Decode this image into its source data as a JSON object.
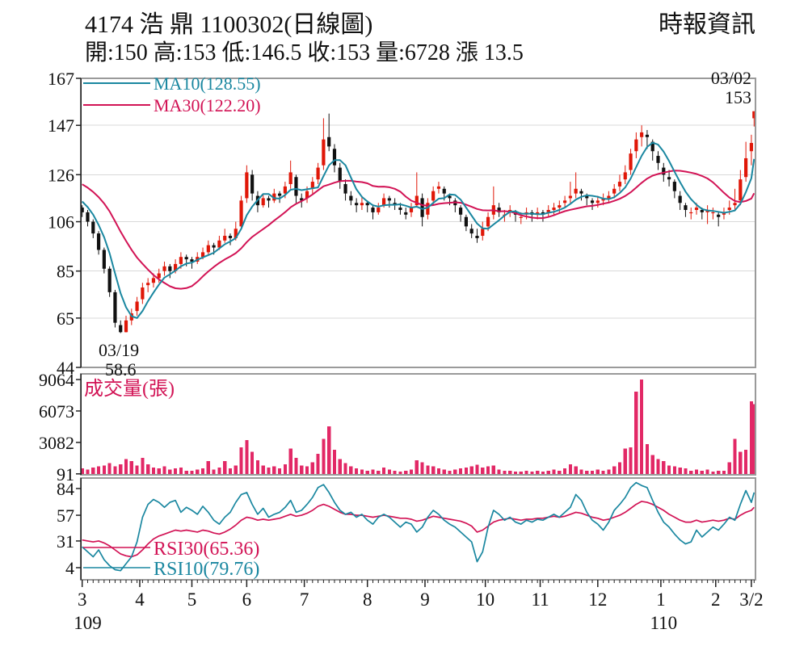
{
  "header": {
    "title": "4174  浩  鼎 1100302(日線圖)",
    "info": "開:150 高:153 低:146.5 收:153 量:6728 漲 13.5",
    "source": "時報資訊",
    "open": 150,
    "high": 153,
    "low": 146.5,
    "close": 153,
    "volume": 6728,
    "change": 13.5
  },
  "colors": {
    "up": "#e01708",
    "down": "#111111",
    "ma10": "#1a87a0",
    "ma30": "#d21355",
    "volume_bar": "#e22866",
    "rsi10": "#1a87a0",
    "rsi30": "#d21355",
    "grid": "#d9d9d9",
    "frame": "#9a9a9a",
    "axis": "#222222"
  },
  "chart_data": {
    "type": "candlestick",
    "main": {
      "legend": {
        "ma10_label": "MA10(128.55)",
        "ma30_label": "MA30(122.20)"
      },
      "yticks": [
        167,
        147,
        126,
        106,
        85,
        65,
        44
      ],
      "annotations": {
        "high_date": "03/02",
        "high_value": "153",
        "low_date": "03/19",
        "low_value": "58.6"
      },
      "sample_days": 2,
      "total_days": 246,
      "ma_prehistory": [
        128,
        128,
        127,
        127,
        126,
        126,
        125,
        124,
        123,
        122,
        118,
        117,
        116,
        112
      ],
      "candles_ohlcv": [
        [
          112,
          113,
          108,
          110,
          600
        ],
        [
          110,
          111,
          104,
          106,
          500
        ],
        [
          106,
          107,
          99,
          101,
          700
        ],
        [
          101,
          102,
          92,
          94,
          800
        ],
        [
          94,
          95,
          84,
          86,
          900
        ],
        [
          86,
          87,
          74,
          76,
          1100
        ],
        [
          76,
          77,
          61,
          63,
          800
        ],
        [
          62,
          64,
          58.6,
          59,
          1000
        ],
        [
          59,
          66,
          58.9,
          64,
          1500
        ],
        [
          64,
          69,
          62,
          67,
          1300
        ],
        [
          68,
          74,
          66,
          72,
          900
        ],
        [
          73,
          80,
          71,
          78,
          1600
        ],
        [
          79,
          82,
          76,
          80,
          1000
        ],
        [
          80,
          84,
          78,
          82,
          700
        ],
        [
          82,
          86,
          80,
          84,
          600
        ],
        [
          85,
          89,
          83,
          87,
          800
        ],
        [
          87,
          88,
          82,
          85,
          500
        ],
        [
          85,
          90,
          84,
          88,
          600
        ],
        [
          88,
          93,
          86,
          91,
          700
        ],
        [
          91,
          92,
          87,
          90,
          400
        ],
        [
          90,
          91,
          86,
          89,
          400
        ],
        [
          89,
          93,
          88,
          91,
          500
        ],
        [
          91,
          95,
          90,
          93,
          600
        ],
        [
          93,
          98,
          92,
          96,
          1300
        ],
        [
          96,
          97,
          92,
          95,
          500
        ],
        [
          95,
          100,
          94,
          98,
          700
        ],
        [
          98,
          103,
          97,
          100,
          1300
        ],
        [
          100,
          101,
          96,
          99,
          600
        ],
        [
          99,
          106,
          98,
          103,
          900
        ],
        [
          104,
          117,
          103,
          115,
          2600
        ],
        [
          116,
          130,
          114,
          127,
          3300
        ],
        [
          126,
          128,
          115,
          118,
          2200
        ],
        [
          117,
          119,
          110,
          113,
          1400
        ],
        [
          113,
          118,
          112,
          116,
          900
        ],
        [
          116,
          117,
          112,
          115,
          700
        ],
        [
          115,
          120,
          114,
          118,
          800
        ],
        [
          118,
          119,
          114,
          117,
          600
        ],
        [
          118,
          123,
          116,
          121,
          1000
        ],
        [
          122,
          132,
          120,
          127,
          2500
        ],
        [
          125,
          126,
          114,
          117,
          1600
        ],
        [
          116,
          118,
          112,
          115,
          900
        ],
        [
          116,
          121,
          114,
          119,
          800
        ],
        [
          120,
          125,
          118,
          123,
          1200
        ],
        [
          124,
          131,
          122,
          129,
          2000
        ],
        [
          130,
          150,
          128,
          141,
          3400
        ],
        [
          142,
          152,
          136,
          138,
          4600
        ],
        [
          137,
          139,
          127,
          130,
          2400
        ],
        [
          129,
          131,
          120,
          123,
          1500
        ],
        [
          122,
          124,
          115,
          118,
          1100
        ],
        [
          117,
          119,
          113,
          115,
          800
        ],
        [
          114,
          116,
          110,
          113,
          600
        ],
        [
          113,
          117,
          111,
          114,
          500
        ],
        [
          114,
          115,
          110,
          113,
          400
        ],
        [
          112,
          113,
          107,
          110,
          500
        ],
        [
          110,
          114,
          109,
          112,
          400
        ],
        [
          113,
          118,
          112,
          116,
          700
        ],
        [
          116,
          117,
          112,
          115,
          500
        ],
        [
          114,
          116,
          111,
          113,
          400
        ],
        [
          112,
          114,
          109,
          111,
          300
        ],
        [
          110,
          112,
          107,
          109,
          400
        ],
        [
          110,
          114,
          108,
          112,
          500
        ],
        [
          113,
          127,
          112,
          117,
          1400
        ],
        [
          116,
          118,
          104,
          108,
          1200
        ],
        [
          109,
          116,
          107,
          114,
          900
        ],
        [
          115,
          121,
          113,
          119,
          800
        ],
        [
          120,
          123,
          118,
          121,
          600
        ],
        [
          120,
          121,
          115,
          118,
          500
        ],
        [
          117,
          118,
          113,
          116,
          400
        ],
        [
          115,
          116,
          110,
          113,
          500
        ],
        [
          112,
          113,
          106,
          109,
          600
        ],
        [
          108,
          109,
          102,
          104,
          700
        ],
        [
          103,
          105,
          99,
          101,
          800
        ],
        [
          100,
          103,
          97,
          99,
          950
        ],
        [
          100,
          106,
          98,
          103,
          700
        ],
        [
          104,
          110,
          102,
          108,
          800
        ],
        [
          109,
          121,
          107,
          113,
          900
        ],
        [
          112,
          114,
          108,
          110,
          500
        ],
        [
          109,
          111,
          106,
          109,
          400
        ],
        [
          110,
          113,
          108,
          111,
          400
        ],
        [
          110,
          111,
          106,
          109,
          300
        ],
        [
          108,
          110,
          105,
          108,
          300
        ],
        [
          109,
          112,
          107,
          110,
          400
        ],
        [
          110,
          111,
          106,
          109,
          300
        ],
        [
          109,
          112,
          107,
          110,
          400
        ],
        [
          110,
          111,
          106,
          109,
          300
        ],
        [
          110,
          113,
          108,
          111,
          400
        ],
        [
          111,
          114,
          109,
          112,
          500
        ],
        [
          112,
          115,
          110,
          113,
          400
        ],
        [
          114,
          117,
          112,
          115,
          600
        ],
        [
          116,
          123,
          114,
          117,
          1000
        ],
        [
          118,
          127,
          116,
          120,
          800
        ],
        [
          119,
          120,
          115,
          118,
          500
        ],
        [
          117,
          118,
          113,
          116,
          400
        ],
        [
          115,
          116,
          111,
          114,
          400
        ],
        [
          114,
          117,
          112,
          115,
          500
        ],
        [
          115,
          118,
          113,
          116,
          400
        ],
        [
          116,
          119,
          114,
          117,
          500
        ],
        [
          118,
          122,
          116,
          120,
          800
        ],
        [
          121,
          126,
          119,
          123,
          1200
        ],
        [
          124,
          130,
          122,
          127,
          2500
        ],
        [
          128,
          137,
          126,
          135,
          2600
        ],
        [
          136,
          144,
          133,
          141,
          7900
        ],
        [
          142,
          147,
          138,
          144,
          9064
        ],
        [
          143,
          145,
          137,
          142,
          2900
        ],
        [
          140,
          141,
          132,
          136,
          1900
        ],
        [
          134,
          136,
          128,
          131,
          1500
        ],
        [
          129,
          131,
          123,
          126,
          1300
        ],
        [
          125,
          128,
          121,
          124,
          900
        ],
        [
          123,
          124,
          116,
          119,
          800
        ],
        [
          117,
          119,
          111,
          114,
          700
        ],
        [
          113,
          114,
          108,
          111,
          600
        ],
        [
          110,
          112,
          107,
          110,
          400
        ],
        [
          111,
          114,
          109,
          112,
          500
        ],
        [
          111,
          112,
          107,
          110,
          400
        ],
        [
          110,
          113,
          105,
          111,
          500
        ],
        [
          110,
          112,
          107,
          110,
          300
        ],
        [
          109,
          110,
          104,
          108,
          400
        ],
        [
          109,
          112,
          107,
          110,
          400
        ],
        [
          111,
          115,
          109,
          112,
          1200
        ],
        [
          113,
          120,
          111,
          114,
          3400
        ],
        [
          115,
          128,
          113,
          124,
          2200
        ],
        [
          125,
          140,
          123,
          133,
          2400
        ],
        [
          136,
          143,
          130,
          139.5,
          7000
        ],
        [
          150,
          153,
          146.5,
          153,
          6728
        ]
      ]
    },
    "volume_panel": {
      "label": "成交量(張)",
      "yticks": [
        9064,
        6073,
        3082,
        91
      ],
      "ymax": 9064
    },
    "rsi_panel": {
      "legend": {
        "rsi30_label": "RSI30(65.36)",
        "rsi10_label": "RSI10(79.76)"
      },
      "yticks": [
        84,
        57,
        31,
        4
      ],
      "rsi10": [
        25,
        20,
        15,
        22,
        12,
        6,
        2,
        1,
        8,
        15,
        30,
        55,
        68,
        73,
        70,
        65,
        70,
        72,
        60,
        65,
        62,
        58,
        66,
        60,
        52,
        48,
        55,
        60,
        70,
        78,
        80,
        68,
        58,
        64,
        55,
        58,
        60,
        65,
        72,
        60,
        62,
        68,
        75,
        85,
        88,
        80,
        70,
        62,
        58,
        60,
        55,
        58,
        52,
        48,
        55,
        58,
        55,
        50,
        45,
        50,
        48,
        40,
        45,
        55,
        62,
        58,
        52,
        48,
        45,
        40,
        35,
        30,
        10,
        20,
        45,
        62,
        58,
        52,
        55,
        50,
        48,
        52,
        50,
        53,
        52,
        55,
        58,
        55,
        60,
        65,
        78,
        72,
        60,
        52,
        48,
        42,
        50,
        62,
        68,
        75,
        85,
        90,
        87,
        85,
        72,
        60,
        50,
        45,
        38,
        32,
        28,
        30,
        42,
        35,
        40,
        45,
        42,
        48,
        55,
        52,
        68,
        82,
        70,
        80
      ],
      "rsi30": [
        32,
        31,
        30,
        31,
        29,
        26,
        22,
        18,
        16,
        15,
        17,
        22,
        28,
        33,
        36,
        38,
        40,
        42,
        41,
        42,
        41,
        40,
        42,
        41,
        39,
        38,
        40,
        43,
        47,
        52,
        55,
        54,
        52,
        53,
        52,
        53,
        54,
        56,
        58,
        56,
        57,
        59,
        62,
        66,
        68,
        66,
        63,
        60,
        58,
        58,
        57,
        57,
        56,
        55,
        56,
        57,
        56,
        55,
        54,
        54,
        53,
        51,
        52,
        54,
        56,
        55,
        54,
        53,
        52,
        51,
        49,
        46,
        40,
        42,
        46,
        50,
        52,
        53,
        54,
        53,
        52,
        53,
        53,
        54,
        54,
        55,
        56,
        55,
        56,
        58,
        60,
        59,
        57,
        55,
        54,
        52,
        53,
        55,
        57,
        60,
        64,
        68,
        71,
        70,
        68,
        65,
        62,
        58,
        55,
        52,
        50,
        50,
        52,
        50,
        51,
        52,
        51,
        52,
        54,
        53,
        57,
        60,
        62,
        65
      ]
    },
    "xaxis": {
      "month_labels": [
        {
          "label": "3",
          "day": 0
        },
        {
          "label": "4",
          "day": 21
        },
        {
          "label": "5",
          "day": 40
        },
        {
          "label": "6",
          "day": 60
        },
        {
          "label": "7",
          "day": 81
        },
        {
          "label": "8",
          "day": 104
        },
        {
          "label": "9",
          "day": 125
        },
        {
          "label": "10",
          "day": 147
        },
        {
          "label": "11",
          "day": 167
        },
        {
          "label": "12",
          "day": 188
        },
        {
          "label": "1",
          "day": 211
        },
        {
          "label": "2",
          "day": 231
        },
        {
          "label": "3/2",
          "day": 244
        }
      ],
      "era_labels": [
        {
          "label": "109",
          "day": 2
        },
        {
          "label": "110",
          "day": 212
        }
      ]
    }
  }
}
